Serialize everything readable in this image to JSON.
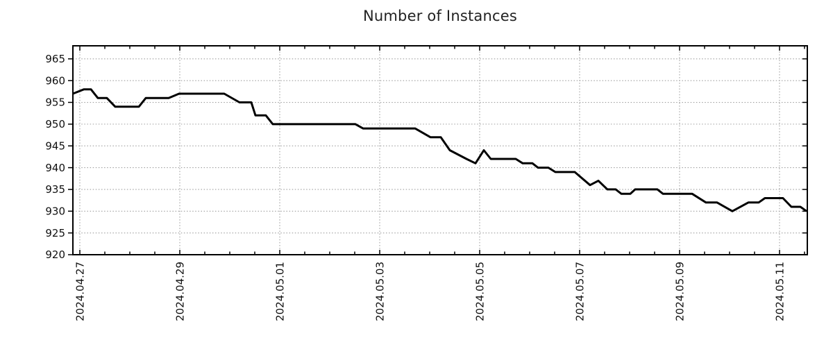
{
  "chart_data": {
    "type": "line",
    "title": "Number of Instances",
    "grid": {
      "style": "dotted",
      "color": "#9e9e9e",
      "on": true
    },
    "x_axis": {
      "xlim_days": [
        -0.139,
        14.556
      ],
      "minor_tick_interval_days": 0.5,
      "tick_labels": [
        {
          "label": "2024.04.27",
          "day": 0
        },
        {
          "label": "2024.04.29",
          "day": 2
        },
        {
          "label": "2024.05.01",
          "day": 4
        },
        {
          "label": "2024.05.03",
          "day": 6
        },
        {
          "label": "2024.05.05",
          "day": 8
        },
        {
          "label": "2024.05.07",
          "day": 10
        },
        {
          "label": "2024.05.09",
          "day": 12
        },
        {
          "label": "2024.05.11",
          "day": 14
        }
      ]
    },
    "y_axis": {
      "ylim": [
        920,
        968
      ],
      "ticks": [
        920,
        925,
        930,
        935,
        940,
        945,
        950,
        955,
        960,
        965
      ]
    },
    "series": [
      {
        "name": "instances",
        "color": "#000000",
        "line_width": 3,
        "points": [
          [
            -0.139,
            957
          ],
          [
            0.083,
            958
          ],
          [
            0.222,
            958
          ],
          [
            0.361,
            956
          ],
          [
            0.542,
            956
          ],
          [
            0.708,
            954
          ],
          [
            1.181,
            954
          ],
          [
            1.319,
            956
          ],
          [
            1.778,
            956
          ],
          [
            1.986,
            957
          ],
          [
            2.889,
            957
          ],
          [
            3.194,
            955
          ],
          [
            3.431,
            955
          ],
          [
            3.514,
            952
          ],
          [
            3.722,
            952
          ],
          [
            3.861,
            950
          ],
          [
            5.514,
            950
          ],
          [
            5.667,
            949
          ],
          [
            6.708,
            949
          ],
          [
            7.014,
            947
          ],
          [
            7.222,
            947
          ],
          [
            7.403,
            944
          ],
          [
            7.736,
            942
          ],
          [
            7.917,
            941
          ],
          [
            8.083,
            944
          ],
          [
            8.222,
            942
          ],
          [
            8.722,
            942
          ],
          [
            8.861,
            941
          ],
          [
            9.056,
            941
          ],
          [
            9.167,
            940
          ],
          [
            9.375,
            940
          ],
          [
            9.514,
            939
          ],
          [
            9.903,
            939
          ],
          [
            10.208,
            936
          ],
          [
            10.375,
            937
          ],
          [
            10.556,
            935
          ],
          [
            10.722,
            935
          ],
          [
            10.833,
            934
          ],
          [
            11.014,
            934
          ],
          [
            11.111,
            935
          ],
          [
            11.556,
            935
          ],
          [
            11.667,
            934
          ],
          [
            12.25,
            934
          ],
          [
            12.528,
            932
          ],
          [
            12.75,
            932
          ],
          [
            13.056,
            930
          ],
          [
            13.375,
            932
          ],
          [
            13.583,
            932
          ],
          [
            13.708,
            933
          ],
          [
            14.069,
            933
          ],
          [
            14.236,
            931
          ],
          [
            14.417,
            931
          ],
          [
            14.542,
            930
          ]
        ]
      }
    ]
  }
}
